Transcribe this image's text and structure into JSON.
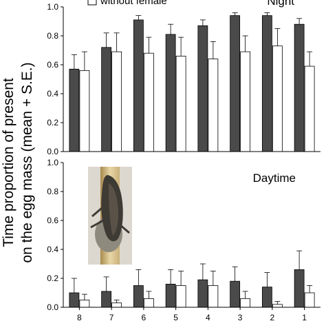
{
  "chart_data": [
    {
      "type": "bar",
      "panel_label": "Night",
      "categories": [
        "8",
        "7",
        "6",
        "5",
        "4",
        "3",
        "2",
        "1"
      ],
      "series": [
        {
          "name": "",
          "color": "#4a4a4a",
          "values": [
            0.57,
            0.72,
            0.91,
            0.81,
            0.87,
            0.94,
            0.94,
            0.88
          ],
          "errors": [
            0.1,
            0.1,
            0.03,
            0.07,
            0.04,
            0.02,
            0.02,
            0.04
          ]
        },
        {
          "name": "without female",
          "color": "#ffffff",
          "values": [
            0.56,
            0.69,
            0.68,
            0.66,
            0.64,
            0.69,
            0.73,
            0.59
          ],
          "errors": [
            0.13,
            0.13,
            0.11,
            0.13,
            0.12,
            0.11,
            0.12,
            0.1
          ]
        }
      ],
      "ylim": [
        0.0,
        1.0
      ],
      "yticks": [
        "0.0",
        "0.2",
        "0.4",
        "0.6",
        "0.8",
        "1.0"
      ],
      "legend_visible_text": "without female",
      "legend_placement": "top-left"
    },
    {
      "type": "bar",
      "panel_label": "Daytime",
      "categories": [
        "8",
        "7",
        "6",
        "5",
        "4",
        "3",
        "2",
        "1"
      ],
      "series": [
        {
          "name": "",
          "color": "#4a4a4a",
          "values": [
            0.1,
            0.11,
            0.15,
            0.16,
            0.19,
            0.18,
            0.14,
            0.26
          ],
          "errors": [
            0.1,
            0.1,
            0.11,
            0.1,
            0.11,
            0.1,
            0.1,
            0.13
          ]
        },
        {
          "name": "without female",
          "color": "#ffffff",
          "values": [
            0.05,
            0.03,
            0.06,
            0.15,
            0.15,
            0.06,
            0.02,
            0.1
          ],
          "errors": [
            0.04,
            0.02,
            0.05,
            0.1,
            0.1,
            0.05,
            0.02,
            0.05
          ]
        }
      ],
      "ylim": [
        0.0,
        1.0
      ],
      "yticks": [
        "0.0",
        "0.2",
        "0.4",
        "0.6",
        "0.8",
        "1.0"
      ]
    }
  ],
  "ylabel_line1": "Time proportion of present",
  "ylabel_line2": "on the egg mass (mean + S.E.)",
  "colors": {
    "axis": "#000000",
    "dark_bar": "#4a4a4a",
    "light_bar": "#ffffff"
  },
  "photo": {
    "icon": "giant-water-bug-photo"
  }
}
